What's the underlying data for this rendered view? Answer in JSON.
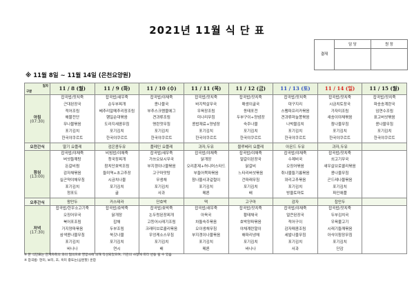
{
  "title": "2021년 11월 식 단 표",
  "approval": {
    "label": "결재",
    "columns": [
      "담 당",
      "원 장"
    ]
  },
  "subtitle": "※ 11월 8일 ~ 11월 14일 (은천요양원)",
  "corner": {
    "top": "일자",
    "bottom": "구분"
  },
  "colors": {
    "header_bg": "#eaf3dd",
    "saturday": "#2f4fbf",
    "sunday": "#d8261e"
  },
  "days": [
    {
      "label": "11 / 8 (월)",
      "color": "#222"
    },
    {
      "label": "11 / 9 (화)",
      "color": "#222"
    },
    {
      "label": "11 / 10 (수)",
      "color": "#222"
    },
    {
      "label": "11 / 11 (목)",
      "color": "#222"
    },
    {
      "label": "11 / 12 (금)",
      "color": "#222"
    },
    {
      "label": "11 / 13 (토)",
      "color": "#2f4fbf"
    },
    {
      "label": "11 / 14 (일)",
      "color": "#d8261e"
    },
    {
      "label": "11 / 15 (월)",
      "color": "#222"
    }
  ],
  "rows": [
    {
      "label": "아침",
      "sub": "(07:30)",
      "type": "meal",
      "cells": [
        [
          "잡곡밥/잣치죽",
          "근대된장국",
          "적어조림",
          "해물전단",
          "무나물볶음",
          "포기김치",
          "한국야쿠르트"
        ],
        [
          "잡곡밥/새우죽",
          "순두부찌개",
          "베추리알메추리장조림",
          "햄일순대볶음",
          "도라지새콤무침",
          "포기김치",
          "한국야쿠르트"
        ],
        [
          "잡곡밥/야채죽",
          "콩나물국",
          "부추스크램블에그",
          "견과류조림",
          "명란젓무침",
          "포기김치",
          "한국야쿠르트"
        ],
        [
          "잡곡밥/잣치죽",
          "바지락살무국",
          "우육장조림",
          "미나리무침",
          "콩밥재료+양념장",
          "포기김치",
          "한국야쿠르트"
        ],
        [
          "잡곡밥/잣치죽",
          "매생이굴국",
          "동태포전",
          "두부구이+양념장",
          "숙주나물",
          "포기김치",
          "한국야쿠르트"
        ],
        [
          "잡곡밥/잣치죽",
          "대구지리",
          "스팸파프리카볶음",
          "견과류마늘쫑볶음",
          "나박물김치",
          "포기김치",
          "한국야쿠르트"
        ],
        [
          "잡곡밥/잣치죽",
          "시금치토장국",
          "가자미조림",
          "새송이야채볶음",
          "참나물무침",
          "포기김치",
          "한국야쿠르트"
        ],
        [
          "잡곡밥/잣치죽",
          "파송송계란국",
          "임연수조림",
          "표고버섯볶음",
          "콩나물무침",
          "포기김치",
          "한국야쿠르트"
        ]
      ]
    },
    {
      "label": "오전간식",
      "type": "snack",
      "cells": [
        "딸기 요플레",
        "검은콩두유",
        "플레인 요플레",
        "과자,두유",
        "블루베리 요플레",
        "아몬드 두유",
        "과자,두유",
        ""
      ]
    },
    {
      "label": "점심",
      "sub": "(13:00)",
      "type": "meal",
      "cells": [
        [
          "잡곡밥/야채죽",
          "버섯들깨탕",
          "돈갈비찜",
          "감자채볶음",
          "실곤약야채무침",
          "포기김치",
          "청포도"
        ],
        [
          "비빔밥/야채죽",
          "청국장찌개",
          "참치단호박조림",
          "들미역+초고추장",
          "시금치나물",
          "포기김치",
          "귤"
        ],
        [
          "잡곡밥/새우죽",
          "가쓰오보시무국",
          "부지갱이나물볶음",
          "고구마맛탕",
          "무생채",
          "포기김치",
          "사과"
        ],
        [
          "잡곡밥/야채죽",
          "닭개장",
          "오리훈제+허니머스타드",
          "부들어묵파볶음",
          "참나물사과겉절이",
          "포기김치",
          "메론"
        ],
        [
          "잡곡밥/야채죽",
          "얼갈이된장국",
          "닭갈비",
          "느타리버섯볶음",
          "건파래무침",
          "포기김치",
          "배"
        ],
        [
          "잡곡밥/야채죽",
          "수제비국",
          "오징어볶음",
          "취나물들기름볶음",
          "꽈리고추볶음",
          "포기김치",
          "방울토마토"
        ],
        [
          "잡곡밥/잣치죽",
          "쇠고기무국",
          "새우살브로콜리볶음",
          "콩나물무침",
          "곤드레나물볶음",
          "포기김치",
          "파인애플"
        ],
        []
      ]
    },
    {
      "label": "오후간식",
      "type": "snack",
      "cells": [
        "왕만두",
        "카스테라",
        "단호박",
        "떡",
        "고구마",
        "감자",
        "찹만두",
        ""
      ]
    },
    {
      "label": "저녁",
      "sub": "(17:30)",
      "type": "meal",
      "cells": [
        [
          "잡곡밥/한우소고기죽",
          "오징어무국",
          "북어포조림",
          "가지양파볶음",
          "삼색콩나물무침",
          "포기김치",
          "바나나"
        ],
        [
          "잡곡밥/호박죽",
          "닭개장",
          "잡채",
          "두부조림",
          "쑥갓나물",
          "포기김치",
          "연시"
        ],
        [
          "잡곡밥/호박죽",
          "논두렁된장찌개",
          "고등어시래기조림",
          "크래미브로콜리볶음",
          "우엉케소스무침",
          "포기김치",
          "배"
        ],
        [
          "잡곡밥/새우죽",
          "아욱국",
          "차돌숙주볶음",
          "오이생채무침",
          "부지갱이나물볶음",
          "포기김치",
          "메론"
        ],
        [
          "잡곡밥/잣치죽",
          "황태채국",
          "호박양파볶음",
          "야채계란말이",
          "해파리냉채",
          "포기김치",
          "바나나"
        ],
        [
          "잡곡밥/야채죽",
          "얼큰된장국",
          "적어구이",
          "감자매콤조림",
          "세발나물무침",
          "포기김치",
          "사과"
        ],
        [
          "잡곡밥/잣치죽",
          "두부김치국",
          "우육불고기",
          "시래기들깨볶음",
          "아삭이참장무침",
          "포기김치",
          "단감"
        ],
        []
      ]
    }
  ],
  "notes": [
    "※ 본 식단표는 관계자회의 과의 협의으로 영양사에 의해 작성되었으며, 기관의 사정에 따라 변동 될 수 있음",
    "※ 잡곡밥: 현미, 보리, 조, 흑미 중또는(삼분할) 혼합"
  ]
}
